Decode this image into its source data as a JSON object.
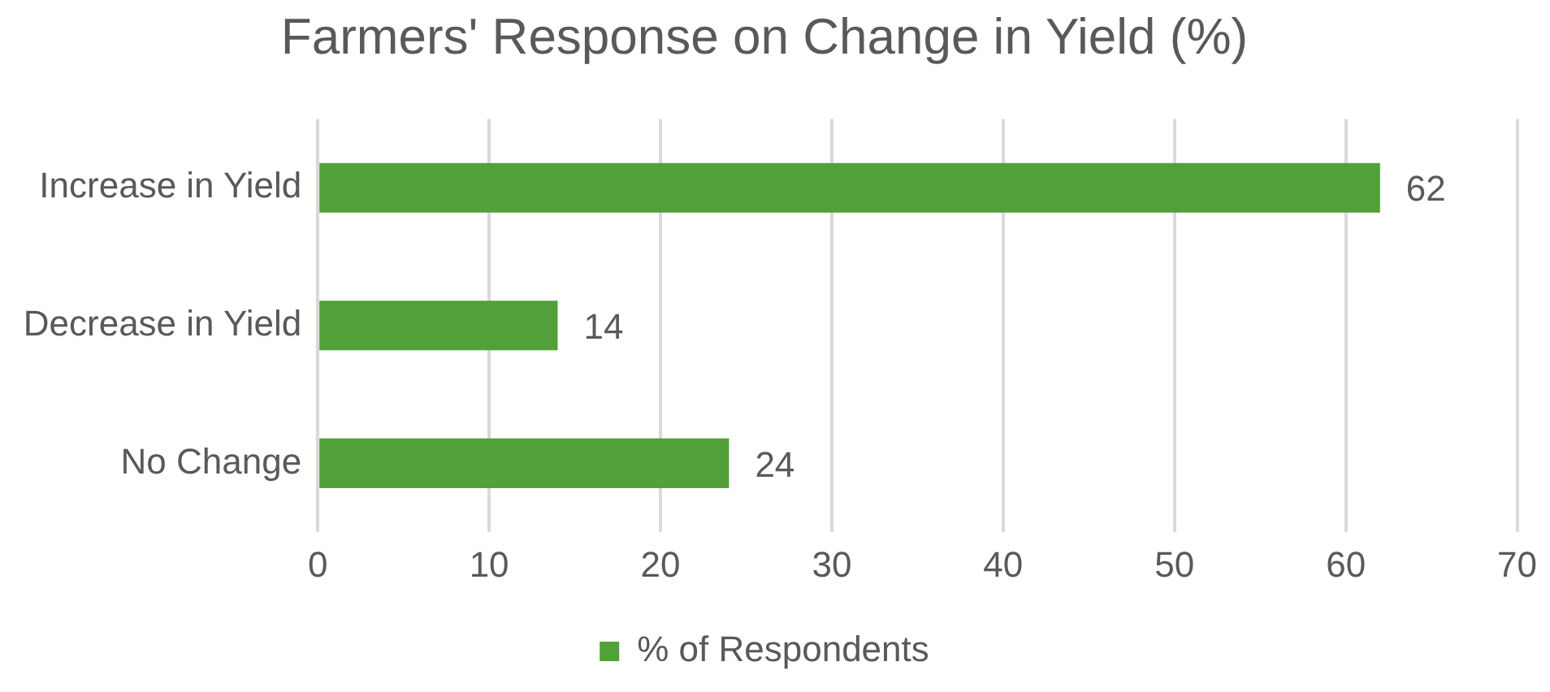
{
  "chart_data": {
    "type": "bar",
    "orientation": "horizontal",
    "title": "Farmers' Response on Change in Yield (%)",
    "categories": [
      "Increase in Yield",
      "Decrease in Yield",
      "No Change"
    ],
    "series": [
      {
        "name": "% of Respondents",
        "color": "#52a03a",
        "values": [
          62,
          14,
          24
        ]
      }
    ],
    "xlim": [
      0,
      70
    ],
    "xticks": [
      0,
      10,
      20,
      30,
      40,
      50,
      60,
      70
    ],
    "grid": "x",
    "legend": "bottom",
    "data_labels": true
  }
}
